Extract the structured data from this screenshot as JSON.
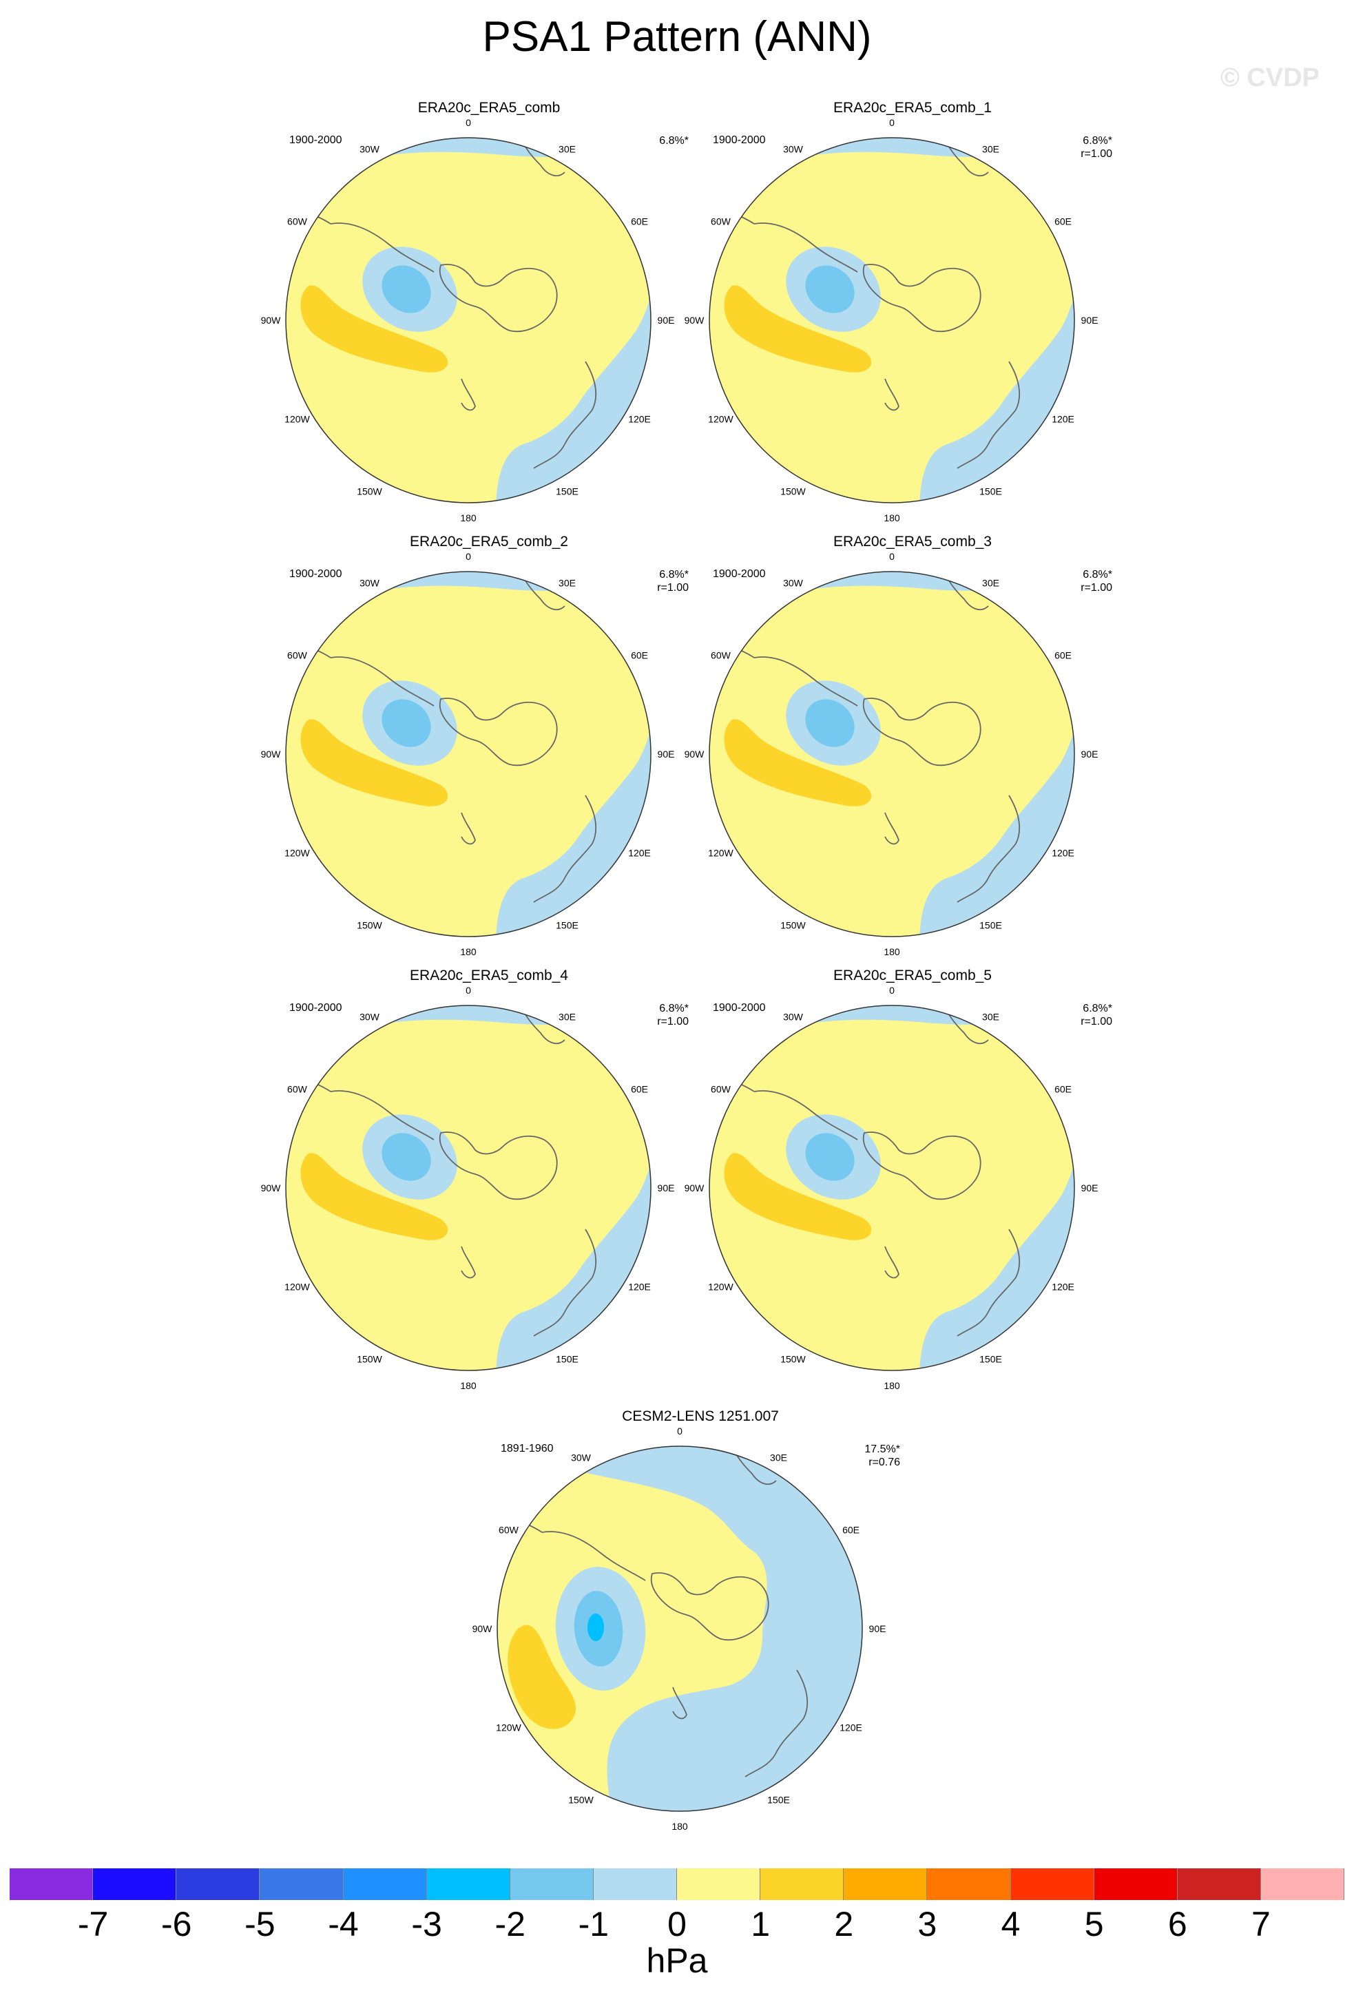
{
  "title": "PSA1 Pattern (ANN)",
  "copyright": "© CVDP",
  "longitude_labels": [
    "0",
    "30E",
    "60E",
    "90E",
    "120E",
    "150E",
    "180",
    "150W",
    "120W",
    "90W",
    "60W",
    "30W"
  ],
  "panels": [
    {
      "name": "ERA20c_ERA5_comb",
      "period": "1900-2000",
      "pct": "6.8%*",
      "r": ""
    },
    {
      "name": "ERA20c_ERA5_comb_1",
      "period": "1900-2000",
      "pct": "6.8%*",
      "r": "r=1.00"
    },
    {
      "name": "ERA20c_ERA5_comb_2",
      "period": "1900-2000",
      "pct": "6.8%*",
      "r": "r=1.00"
    },
    {
      "name": "ERA20c_ERA5_comb_3",
      "period": "1900-2000",
      "pct": "6.8%*",
      "r": "r=1.00"
    },
    {
      "name": "ERA20c_ERA5_comb_4",
      "period": "1900-2000",
      "pct": "6.8%*",
      "r": "r=1.00"
    },
    {
      "name": "ERA20c_ERA5_comb_5",
      "period": "1900-2000",
      "pct": "6.8%*",
      "r": "r=1.00"
    },
    {
      "name": "CESM2-LENS 1251.007",
      "period": "1891-1960",
      "pct": "17.5%*",
      "r": "r=0.76"
    }
  ],
  "colorbar": {
    "units": "hPa",
    "tick_labels": [
      "-7",
      "-6",
      "-5",
      "-4",
      "-3",
      "-2",
      "-1",
      "0",
      "1",
      "2",
      "3",
      "4",
      "5",
      "6",
      "7"
    ],
    "colors": [
      "#8a2be2",
      "#1a0dff",
      "#2a3de0",
      "#3a78e8",
      "#1e90ff",
      "#00bfff",
      "#75c8f0",
      "#b4dcf0",
      "#fdf88d",
      "#fdd52a",
      "#ffaa00",
      "#ff7700",
      "#ff3300",
      "#ee0000",
      "#cc2222",
      "#ffb0b0"
    ]
  },
  "colors": {
    "yellow": "#fdf88d",
    "pale_blue": "#b4dcf0",
    "mid_blue": "#75c8f0",
    "deep_blue": "#00bfff",
    "gold": "#fdd52a",
    "coast": "#666666"
  }
}
